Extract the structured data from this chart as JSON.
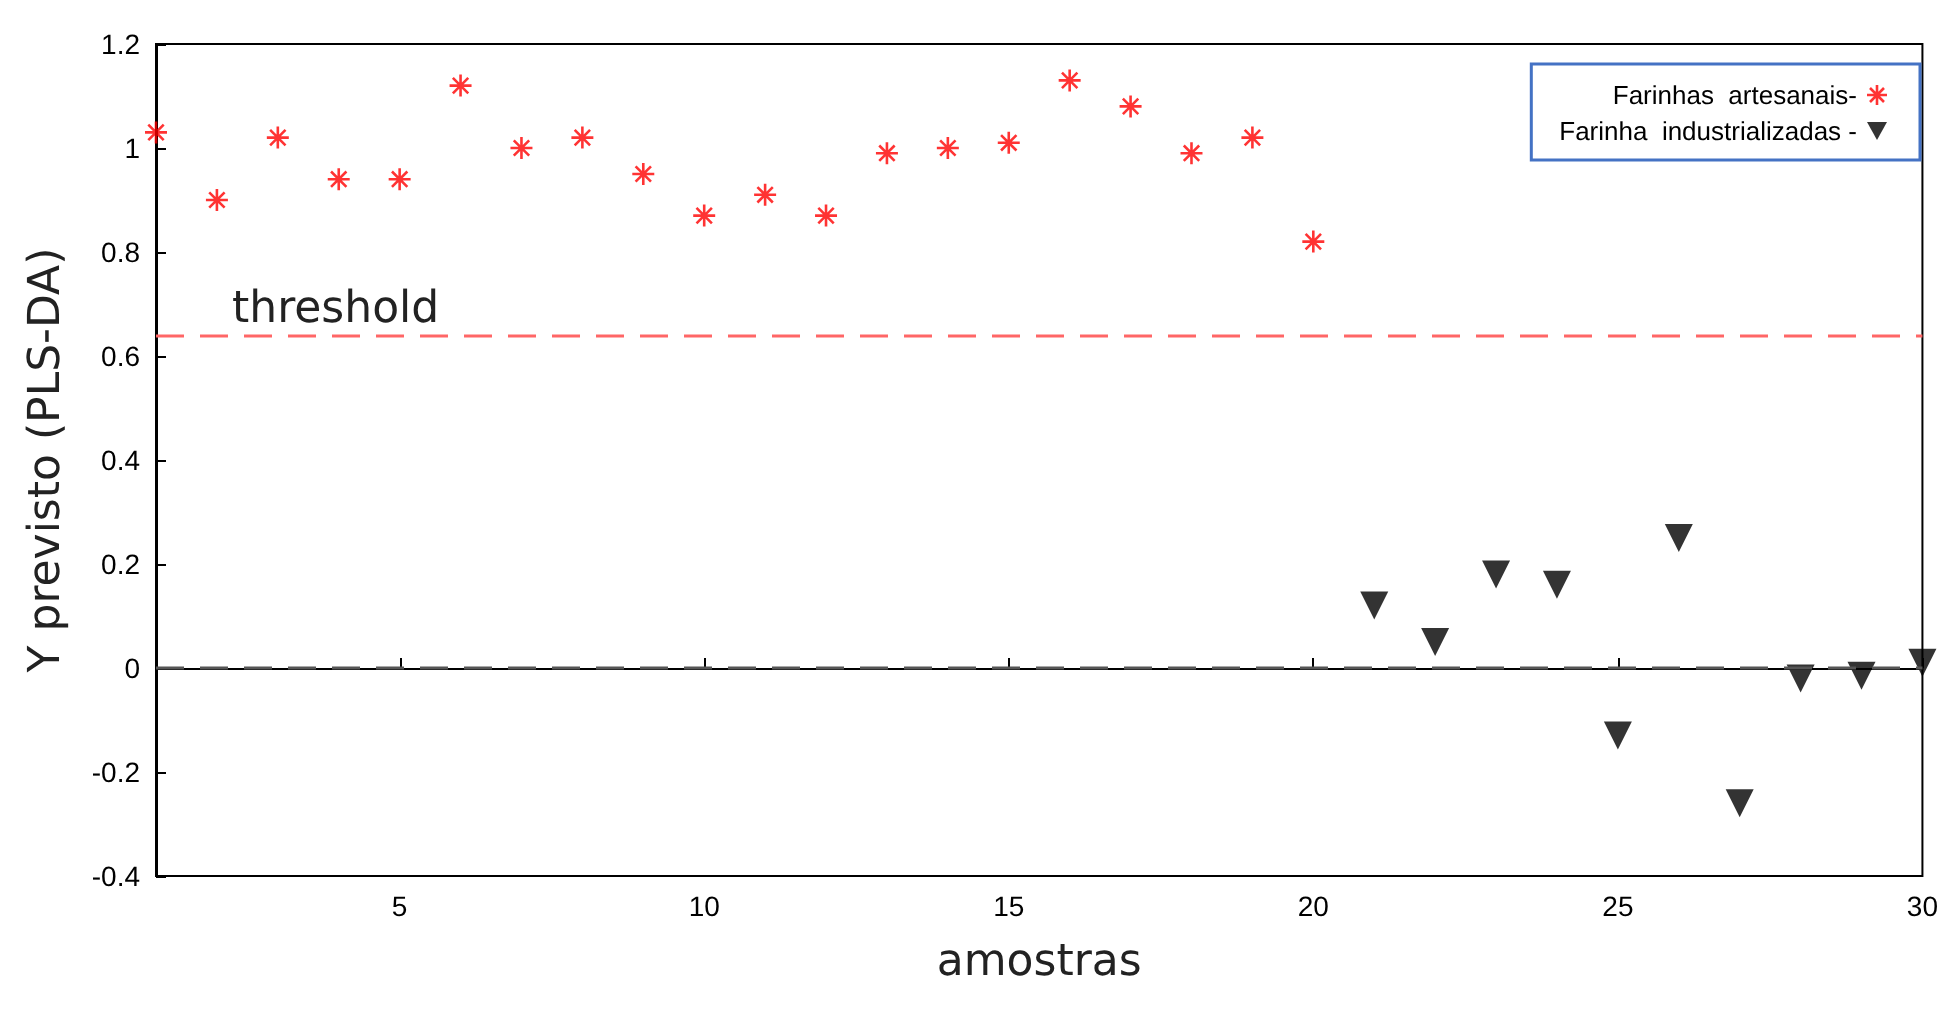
{
  "chart_data": {
    "type": "scatter",
    "xlabel": "amostras",
    "ylabel": "Y previsto (PLS-DA)",
    "series": [
      {
        "name": "Farinhas  artesanais-",
        "color": "#ff0000",
        "marker": "cross",
        "x": [
          1,
          2,
          3,
          4,
          5,
          6,
          7,
          8,
          9,
          10,
          11,
          12,
          13,
          14,
          15,
          16,
          17,
          18,
          19,
          20
        ],
        "values": [
          1.03,
          0.9,
          1.02,
          0.94,
          0.94,
          1.12,
          1.0,
          1.02,
          0.95,
          0.87,
          0.91,
          0.87,
          0.99,
          1.0,
          1.01,
          1.13,
          1.08,
          0.99,
          1.02,
          0.82
        ]
      },
      {
        "name": "Farinha  industrializadas -",
        "color": "#000000",
        "marker": "triangle",
        "x": [
          21,
          22,
          23,
          24,
          25,
          26,
          27,
          28,
          29,
          30
        ],
        "values": [
          0.12,
          0.05,
          0.18,
          0.16,
          -0.13,
          0.25,
          -0.26,
          -0.02,
          -0.015,
          0.01
        ]
      }
    ],
    "xlim": [
      1,
      30
    ],
    "xticks": [
      5,
      10,
      15,
      20,
      25,
      30
    ],
    "ylim": [
      -0.4,
      1.2
    ],
    "yticks": [
      -0.4,
      -0.2,
      0,
      0.2,
      0.4,
      0.6,
      0.8,
      1,
      1.2
    ],
    "ref_lines": [
      {
        "axis": "y",
        "value": 0.64,
        "label": "threshold",
        "color": "#ff6666",
        "line_style": "dashed"
      },
      {
        "axis": "y",
        "value": 0,
        "color": "#555555",
        "line_style": "dashed"
      }
    ],
    "grid": false,
    "legend": "top right"
  }
}
